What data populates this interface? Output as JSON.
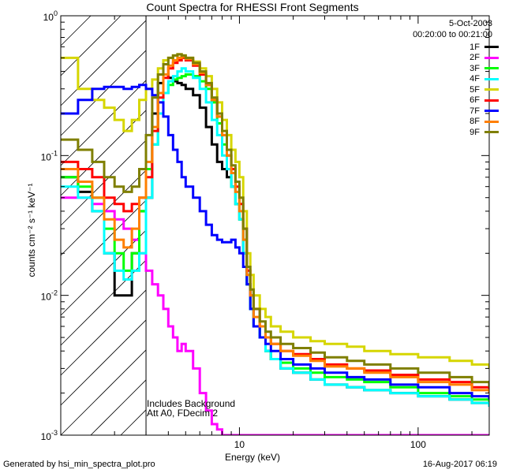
{
  "chart_data": {
    "type": "line",
    "title": "Count Spectra for RHESSI Front Segments",
    "xlabel": "Energy (keV)",
    "ylabel": "counts cm⁻² s⁻¹ keV⁻¹",
    "xscale": "log",
    "yscale": "log",
    "xlim": [
      1,
      250
    ],
    "ylim": [
      0.001,
      1
    ],
    "x_tick_labels": [
      {
        "value": 10,
        "label": "10"
      },
      {
        "value": 100,
        "label": "100"
      }
    ],
    "y_tick_labels": [
      {
        "value": 0.001,
        "base": "10",
        "exp": "-3"
      },
      {
        "value": 0.01,
        "base": "10",
        "exp": "-2"
      },
      {
        "value": 0.1,
        "base": "10",
        "exp": "-1"
      },
      {
        "value": 1,
        "base": "10",
        "exp": "0"
      }
    ],
    "date": "5-Oct-2003",
    "time_range": "00:20:00 to 00:21:00",
    "hatched_region": {
      "x_from": 1,
      "x_to": 3
    },
    "annotations": [
      "Includes Background",
      "Att A0, FDecim 2"
    ],
    "x": [
      1.0,
      1.25,
      1.5,
      1.75,
      2.0,
      2.25,
      2.5,
      2.75,
      3.0,
      3.25,
      3.5,
      3.75,
      4.0,
      4.25,
      4.5,
      4.75,
      5.0,
      5.5,
      6.0,
      6.5,
      7.0,
      7.5,
      8.0,
      8.5,
      9.0,
      9.5,
      10.0,
      10.5,
      11.0,
      11.5,
      12.0,
      13.0,
      14.0,
      15.0,
      17.0,
      20.0,
      25.0,
      30.0,
      40.0,
      50.0,
      70.0,
      100.0,
      150.0,
      200.0,
      250.0
    ],
    "series": [
      {
        "name": "1F",
        "color": "#000000",
        "values": [
          0.07,
          0.055,
          0.04,
          0.02,
          0.01,
          0.01,
          0.02,
          0.04,
          0.05,
          0.2,
          0.33,
          0.38,
          0.36,
          0.34,
          0.33,
          0.32,
          0.3,
          0.27,
          0.22,
          0.16,
          0.12,
          0.09,
          0.08,
          0.07,
          0.06,
          0.045,
          0.035,
          0.02,
          0.012,
          0.008,
          0.006,
          0.005,
          0.004,
          0.0035,
          0.003,
          0.0028,
          0.0025,
          0.0023,
          0.0022,
          0.0021,
          0.002,
          0.0019,
          0.0018,
          0.0017,
          0.0016
        ]
      },
      {
        "name": "2F",
        "color": "#ff00ff",
        "values": [
          0.05,
          0.05,
          0.045,
          0.04,
          0.035,
          0.03,
          0.025,
          0.02,
          0.015,
          0.012,
          0.01,
          0.008,
          0.006,
          0.005,
          0.004,
          0.0045,
          0.004,
          0.003,
          0.002,
          0.0015,
          0.0012,
          0.0011,
          0.001,
          0.001,
          0.001,
          0.001,
          0.001,
          0.001,
          0.001,
          0.001,
          0.001,
          0.001,
          0.001,
          0.001,
          0.001,
          0.001,
          0.001,
          0.001,
          0.001,
          0.001,
          0.001,
          0.001,
          0.001,
          0.001,
          0.001
        ]
      },
      {
        "name": "3F",
        "color": "#00ff00",
        "values": [
          0.07,
          0.06,
          0.05,
          0.03,
          0.02,
          0.015,
          0.02,
          0.04,
          0.08,
          0.12,
          0.2,
          0.28,
          0.32,
          0.35,
          0.36,
          0.37,
          0.38,
          0.37,
          0.34,
          0.3,
          0.24,
          0.17,
          0.12,
          0.08,
          0.06,
          0.045,
          0.035,
          0.025,
          0.012,
          0.008,
          0.006,
          0.005,
          0.004,
          0.0035,
          0.0033,
          0.003,
          0.0028,
          0.0026,
          0.0025,
          0.0024,
          0.0022,
          0.002,
          0.0019,
          0.0018,
          0.0017
        ]
      },
      {
        "name": "4F",
        "color": "#00ffff",
        "values": [
          0.06,
          0.05,
          0.04,
          0.02,
          0.015,
          0.013,
          0.015,
          0.02,
          0.05,
          0.12,
          0.2,
          0.28,
          0.34,
          0.37,
          0.4,
          0.42,
          0.4,
          0.36,
          0.3,
          0.24,
          0.18,
          0.14,
          0.1,
          0.08,
          0.06,
          0.045,
          0.035,
          0.02,
          0.012,
          0.008,
          0.006,
          0.005,
          0.004,
          0.0035,
          0.003,
          0.0028,
          0.0025,
          0.0023,
          0.0022,
          0.0021,
          0.002,
          0.0019,
          0.0018,
          0.0017,
          0.0016
        ]
      },
      {
        "name": "5F",
        "color": "#d6d600",
        "values": [
          0.5,
          0.3,
          0.25,
          0.22,
          0.18,
          0.15,
          0.18,
          0.25,
          0.3,
          0.35,
          0.42,
          0.48,
          0.5,
          0.52,
          0.53,
          0.52,
          0.5,
          0.47,
          0.42,
          0.37,
          0.3,
          0.24,
          0.18,
          0.14,
          0.11,
          0.09,
          0.07,
          0.04,
          0.02,
          0.014,
          0.01,
          0.008,
          0.007,
          0.006,
          0.0055,
          0.005,
          0.0047,
          0.0045,
          0.0043,
          0.004,
          0.0038,
          0.0036,
          0.0034,
          0.0032,
          0.003
        ]
      },
      {
        "name": "6F",
        "color": "#ff0000",
        "values": [
          0.09,
          0.08,
          0.07,
          0.05,
          0.045,
          0.04,
          0.045,
          0.05,
          0.07,
          0.15,
          0.26,
          0.36,
          0.42,
          0.46,
          0.48,
          0.5,
          0.48,
          0.44,
          0.38,
          0.32,
          0.25,
          0.19,
          0.14,
          0.1,
          0.08,
          0.06,
          0.045,
          0.03,
          0.015,
          0.01,
          0.008,
          0.006,
          0.005,
          0.0045,
          0.004,
          0.0038,
          0.0035,
          0.0032,
          0.003,
          0.0029,
          0.0027,
          0.0025,
          0.0024,
          0.0022,
          0.002
        ]
      },
      {
        "name": "7F",
        "color": "#0000ff",
        "values": [
          0.2,
          0.25,
          0.3,
          0.31,
          0.31,
          0.3,
          0.31,
          0.32,
          0.3,
          0.27,
          0.24,
          0.19,
          0.14,
          0.11,
          0.09,
          0.07,
          0.06,
          0.05,
          0.04,
          0.032,
          0.027,
          0.025,
          0.024,
          0.024,
          0.025,
          0.022,
          0.02,
          0.016,
          0.012,
          0.008,
          0.006,
          0.005,
          0.0045,
          0.004,
          0.0035,
          0.0032,
          0.003,
          0.0028,
          0.0026,
          0.0025,
          0.0023,
          0.0022,
          0.002,
          0.0019,
          0.0018
        ]
      },
      {
        "name": "8F",
        "color": "#ff7f00",
        "values": [
          0.08,
          0.065,
          0.05,
          0.035,
          0.025,
          0.022,
          0.03,
          0.05,
          0.09,
          0.16,
          0.28,
          0.38,
          0.44,
          0.48,
          0.5,
          0.51,
          0.49,
          0.45,
          0.39,
          0.32,
          0.25,
          0.19,
          0.14,
          0.1,
          0.075,
          0.055,
          0.04,
          0.025,
          0.014,
          0.01,
          0.007,
          0.006,
          0.005,
          0.0045,
          0.004,
          0.0037,
          0.0034,
          0.0031,
          0.003,
          0.0028,
          0.0026,
          0.0024,
          0.0023,
          0.0021,
          0.002
        ]
      },
      {
        "name": "9F",
        "color": "#7f7f00",
        "values": [
          0.13,
          0.11,
          0.09,
          0.07,
          0.06,
          0.055,
          0.06,
          0.08,
          0.14,
          0.26,
          0.38,
          0.45,
          0.5,
          0.52,
          0.53,
          0.52,
          0.5,
          0.46,
          0.4,
          0.33,
          0.26,
          0.2,
          0.15,
          0.11,
          0.085,
          0.065,
          0.05,
          0.03,
          0.016,
          0.011,
          0.008,
          0.0065,
          0.0055,
          0.005,
          0.0045,
          0.0042,
          0.0039,
          0.0036,
          0.0034,
          0.0032,
          0.003,
          0.0028,
          0.0026,
          0.0024,
          0.0022
        ]
      }
    ]
  },
  "footer": {
    "generated_by": "Generated by hsi_min_spectra_plot.pro",
    "timestamp": "16-Aug-2017 06:19"
  }
}
